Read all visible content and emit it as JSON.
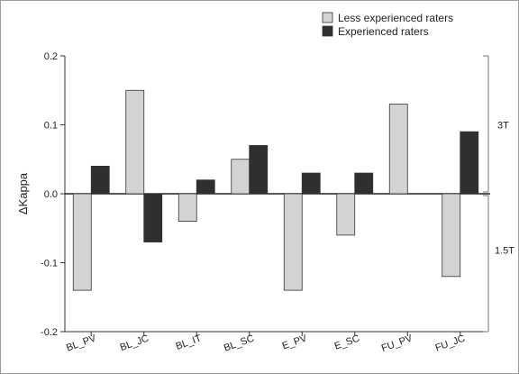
{
  "chart_data": {
    "type": "bar",
    "ylabel": "ΔKappa",
    "xlabel": "",
    "ylim": [
      -0.2,
      0.2
    ],
    "yticks": [
      "-0.2",
      "-0.1",
      "0.0",
      "0.1",
      "0.2"
    ],
    "categories": [
      "BL_PV",
      "BL_JC",
      "BL_IT",
      "BL_SC",
      "E_PV",
      "E_SC",
      "FU_PV",
      "FU_JC"
    ],
    "series": [
      {
        "name": "Less experienced raters",
        "color": "#d3d3d3",
        "values": [
          -0.14,
          0.15,
          -0.04,
          0.05,
          -0.14,
          -0.06,
          0.13,
          -0.12
        ]
      },
      {
        "name": "Experienced raters",
        "color": "#2f2f2f",
        "values": [
          0.04,
          -0.07,
          0.02,
          0.07,
          0.03,
          0.03,
          0.0,
          0.09
        ]
      }
    ],
    "legend_position": "top-right",
    "grid": false,
    "annotations": [
      "3T",
      "1.5T"
    ]
  }
}
